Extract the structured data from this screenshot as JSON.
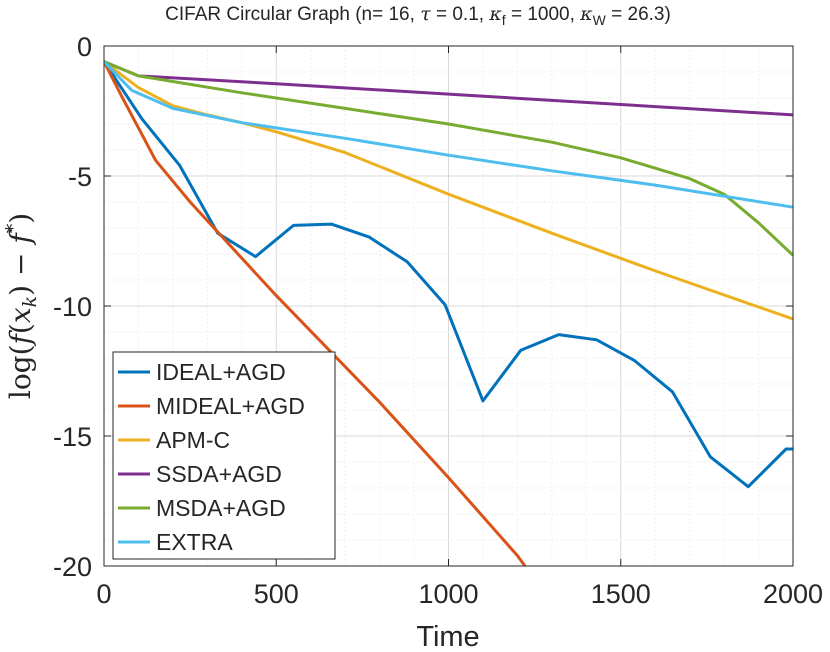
{
  "chart_data": {
    "type": "line",
    "title_parts": {
      "prefix": "CIFAR Circular Graph (n= 16, ",
      "tau": "τ",
      "tau_val": " = 0.1, ",
      "kappa": "κ",
      "f_sub": "f",
      "kf_val": " = 1000, ",
      "w_sub": "W",
      "kw_val": " = 26.3)"
    },
    "xlabel": "Time",
    "ylabel_parts": {
      "log": "log(",
      "f": "f",
      "paren": "(",
      "x": "x",
      "k": "k",
      "minus": ") − ",
      "fstar": "f",
      "star": "*",
      "close": ")"
    },
    "xlim": [
      0,
      2000
    ],
    "ylim": [
      -20,
      0
    ],
    "xticks": [
      0,
      500,
      1000,
      1500,
      2000
    ],
    "xtick_labels": [
      "0",
      "500",
      "1000",
      "1500",
      "2000"
    ],
    "yticks": [
      0,
      -5,
      -10,
      -15,
      -20
    ],
    "ytick_labels": [
      "0",
      "-5",
      "-10",
      "-15",
      "-20"
    ],
    "grid": true,
    "legend_position": "bottom-left",
    "series": [
      {
        "name": "IDEAL+AGD",
        "color": "#0072BD",
        "points": [
          [
            0,
            -0.6
          ],
          [
            110,
            -2.8
          ],
          [
            220,
            -4.6
          ],
          [
            330,
            -7.2
          ],
          [
            440,
            -8.1
          ],
          [
            550,
            -6.9
          ],
          [
            660,
            -6.85
          ],
          [
            770,
            -7.35
          ],
          [
            880,
            -8.3
          ],
          [
            990,
            -9.95
          ],
          [
            1100,
            -13.65
          ],
          [
            1210,
            -11.7
          ],
          [
            1320,
            -11.1
          ],
          [
            1430,
            -11.3
          ],
          [
            1540,
            -12.1
          ],
          [
            1650,
            -13.3
          ],
          [
            1760,
            -15.8
          ],
          [
            1870,
            -16.95
          ],
          [
            1980,
            -15.5
          ],
          [
            2000,
            -15.5
          ]
        ]
      },
      {
        "name": "MIDEAL+AGD",
        "color": "#D95319",
        "points": [
          [
            0,
            -0.6
          ],
          [
            50,
            -1.9
          ],
          [
            150,
            -4.4
          ],
          [
            250,
            -6.0
          ],
          [
            500,
            -9.6
          ],
          [
            800,
            -13.7
          ],
          [
            1000,
            -16.6
          ],
          [
            1200,
            -19.6
          ],
          [
            1222,
            -20
          ]
        ]
      },
      {
        "name": "APM-C",
        "color": "#EDB120",
        "points": [
          [
            0,
            -0.6
          ],
          [
            100,
            -1.6
          ],
          [
            200,
            -2.3
          ],
          [
            300,
            -2.65
          ],
          [
            400,
            -2.95
          ],
          [
            500,
            -3.3
          ],
          [
            700,
            -4.1
          ],
          [
            1000,
            -5.7
          ],
          [
            1300,
            -7.2
          ],
          [
            1600,
            -8.65
          ],
          [
            2000,
            -10.5
          ]
        ]
      },
      {
        "name": "SSDA+AGD",
        "color": "#7E2F8E",
        "points": [
          [
            0,
            -0.6
          ],
          [
            100,
            -1.15
          ],
          [
            500,
            -1.45
          ],
          [
            1000,
            -1.85
          ],
          [
            1500,
            -2.25
          ],
          [
            2000,
            -2.65
          ]
        ]
      },
      {
        "name": "MSDA+AGD",
        "color": "#77AC30",
        "points": [
          [
            0,
            -0.6
          ],
          [
            100,
            -1.15
          ],
          [
            400,
            -1.8
          ],
          [
            700,
            -2.4
          ],
          [
            1000,
            -3.0
          ],
          [
            1300,
            -3.7
          ],
          [
            1500,
            -4.3
          ],
          [
            1700,
            -5.1
          ],
          [
            1800,
            -5.7
          ],
          [
            1900,
            -6.8
          ],
          [
            2000,
            -8.05
          ]
        ]
      },
      {
        "name": "EXTRA",
        "color": "#4DBEEE",
        "points": [
          [
            0,
            -0.6
          ],
          [
            80,
            -1.7
          ],
          [
            200,
            -2.4
          ],
          [
            400,
            -2.95
          ],
          [
            700,
            -3.55
          ],
          [
            1000,
            -4.2
          ],
          [
            1300,
            -4.8
          ],
          [
            1600,
            -5.35
          ],
          [
            2000,
            -6.2
          ]
        ]
      }
    ]
  }
}
